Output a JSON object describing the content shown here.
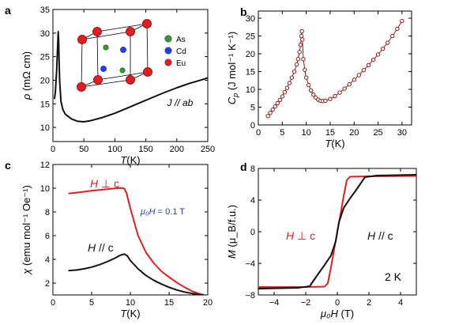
{
  "panels": [
    {
      "id": "a",
      "letter": "a",
      "chart_data": {
        "type": "line",
        "xlabel_italic": "T",
        "xlabel_unit": "(K)",
        "ylabel_sym": "ρ",
        "ylabel_unit": "(mΩ cm)",
        "xlim": [
          0,
          250
        ],
        "ylim": [
          7,
          35
        ],
        "xticks": [
          0,
          50,
          100,
          150,
          200,
          250
        ],
        "yticks": [
          10,
          15,
          20,
          25,
          30,
          35
        ],
        "grid": false,
        "annotation": "J // ab",
        "legend": [
          {
            "label": "As",
            "color": "#2ca02c"
          },
          {
            "label": "Cd",
            "color": "#1f3fff"
          },
          {
            "label": "Eu",
            "color": "#e81c1c"
          }
        ],
        "series": [
          {
            "color": "#111111",
            "x": [
              2.5,
              4,
              6,
              7.5,
              8.5,
              9.2,
              10,
              11,
              13,
              16,
              20,
              30,
              40,
              50,
              60,
              80,
              100,
              120,
              140,
              160,
              180,
              200,
              220,
              240,
              250
            ],
            "y": [
              16.0,
              17.5,
              22.0,
              27.0,
              30.3,
              28.5,
              24.0,
              19.5,
              15.5,
              13.8,
              12.8,
              11.8,
              11.3,
              11.2,
              11.4,
              12.1,
              13.0,
              14.1,
              15.2,
              16.3,
              17.4,
              18.4,
              19.3,
              20.1,
              20.5
            ]
          }
        ]
      }
    },
    {
      "id": "b",
      "letter": "b",
      "chart_data": {
        "type": "scatter",
        "xlabel_italic": "T",
        "xlabel_unit": "(K)",
        "ylabel_sym": "C",
        "ylabel_sub": "p",
        "ylabel_unit": "(J mol⁻¹ K⁻¹)",
        "xlim": [
          0,
          32
        ],
        "ylim": [
          0,
          32
        ],
        "xticks": [
          0,
          5,
          10,
          15,
          20,
          25,
          30
        ],
        "yticks": [
          0,
          5,
          10,
          15,
          20,
          25,
          30
        ],
        "grid": false,
        "series": [
          {
            "color": "#8b1a1a",
            "x": [
              2,
              2.5,
              3,
              3.5,
              4,
              4.5,
              5,
              5.5,
              6,
              6.5,
              7,
              7.5,
              8,
              8.3,
              8.6,
              8.8,
              9.0,
              9.1,
              9.2,
              9.4,
              9.7,
              10,
              10.5,
              11,
              11.5,
              12,
              12.5,
              13,
              13.5,
              14,
              15,
              16,
              17,
              18,
              19,
              20,
              21,
              22,
              23,
              24,
              25,
              26,
              27,
              28,
              29,
              30
            ],
            "y": [
              2.5,
              3.4,
              4.3,
              5.2,
              6.1,
              7.0,
              8.0,
              9.2,
              10.4,
              11.8,
              13.3,
              15.0,
              17.0,
              18.5,
              20.5,
              22.5,
              25.0,
              26.3,
              24.0,
              18.5,
              15.5,
              13.3,
              11.2,
              9.7,
              8.5,
              7.7,
              7.1,
              6.8,
              6.7,
              6.8,
              7.3,
              8.1,
              9.1,
              10.2,
              11.4,
              12.7,
              14.0,
              15.4,
              16.8,
              18.3,
              19.8,
              21.4,
              23.1,
              25.0,
              27.0,
              29.2
            ]
          }
        ]
      }
    },
    {
      "id": "c",
      "letter": "c",
      "chart_data": {
        "type": "line",
        "xlabel_italic": "T",
        "xlabel_unit": "(K)",
        "ylabel_sym": "χ",
        "ylabel_unit": "(emu mol⁻¹ Oe⁻¹)",
        "xlim": [
          0,
          20
        ],
        "ylim": [
          1,
          12
        ],
        "xticks": [
          0,
          5,
          10,
          15,
          20
        ],
        "yticks": [
          2,
          4,
          6,
          8,
          10,
          12
        ],
        "grid": false,
        "field_label_sym": "μ₀H",
        "field_label_val": " = 0.1 T",
        "field_color": "#1f3fa8",
        "series": [
          {
            "name_italic": "H",
            "name_rest": " ⊥ c",
            "color": "#e81c1c",
            "x": [
              2,
              3,
              4,
              5,
              6,
              7,
              8,
              8.8,
              9.2,
              9.5,
              10,
              11,
              12,
              13,
              14,
              15,
              16,
              17,
              18,
              19,
              19.5
            ],
            "y": [
              9.55,
              9.62,
              9.7,
              9.78,
              9.85,
              9.92,
              9.98,
              10.02,
              9.98,
              9.6,
              8.3,
              6.0,
              4.6,
              3.7,
              3.0,
              2.5,
              2.05,
              1.65,
              1.3,
              1.08,
              1.0
            ]
          },
          {
            "name_italic": "H",
            "name_rest": " // c",
            "color": "#111111",
            "x": [
              2,
              3,
              4,
              5,
              6,
              7,
              8,
              8.7,
              9.2,
              9.6,
              10,
              11,
              12,
              13,
              14,
              15,
              16,
              17,
              18,
              19,
              19.5
            ],
            "y": [
              3.05,
              3.1,
              3.2,
              3.35,
              3.55,
              3.8,
              4.1,
              4.35,
              4.45,
              4.3,
              3.9,
              3.2,
              2.65,
              2.25,
              1.92,
              1.65,
              1.42,
              1.25,
              1.12,
              1.03,
              1.0
            ]
          }
        ]
      }
    },
    {
      "id": "d",
      "letter": "d",
      "chart_data": {
        "type": "line",
        "xlabel_sym": "μ₀H",
        "xlabel_unit": " (T)",
        "ylabel_sym": "M",
        "ylabel_unit": "(μ_B/f.u.)",
        "xlim": [
          -5,
          5
        ],
        "ylim": [
          -8,
          8
        ],
        "xticks": [
          -4,
          -2,
          0,
          2,
          4
        ],
        "yticks": [
          -8,
          -4,
          0,
          4,
          8
        ],
        "grid": false,
        "annotation": "2 K",
        "series": [
          {
            "name_italic": "H",
            "name_rest": " ⊥ c",
            "color": "#e81c1c",
            "x": [
              -5,
              -2,
              -0.8,
              -0.6,
              -0.4,
              -0.2,
              0,
              0.2,
              0.4,
              0.6,
              0.8,
              2,
              5
            ],
            "y": [
              -7.0,
              -7.0,
              -6.95,
              -6.5,
              -4.5,
              -2.2,
              0.0,
              2.2,
              4.5,
              6.5,
              6.95,
              7.0,
              7.05
            ]
          },
          {
            "name_italic": "H",
            "name_rest": " // c",
            "color": "#111111",
            "x": [
              -5,
              -2.5,
              -1.75,
              -1.2,
              -0.8,
              -0.4,
              -0.1,
              0.1,
              0.4,
              0.8,
              1.2,
              1.75,
              2.5,
              5
            ],
            "y": [
              -7.2,
              -7.1,
              -6.9,
              -5.3,
              -4.2,
              -3.0,
              -1.2,
              1.2,
              3.0,
              4.2,
              5.3,
              6.9,
              7.1,
              7.2
            ]
          }
        ]
      }
    }
  ]
}
